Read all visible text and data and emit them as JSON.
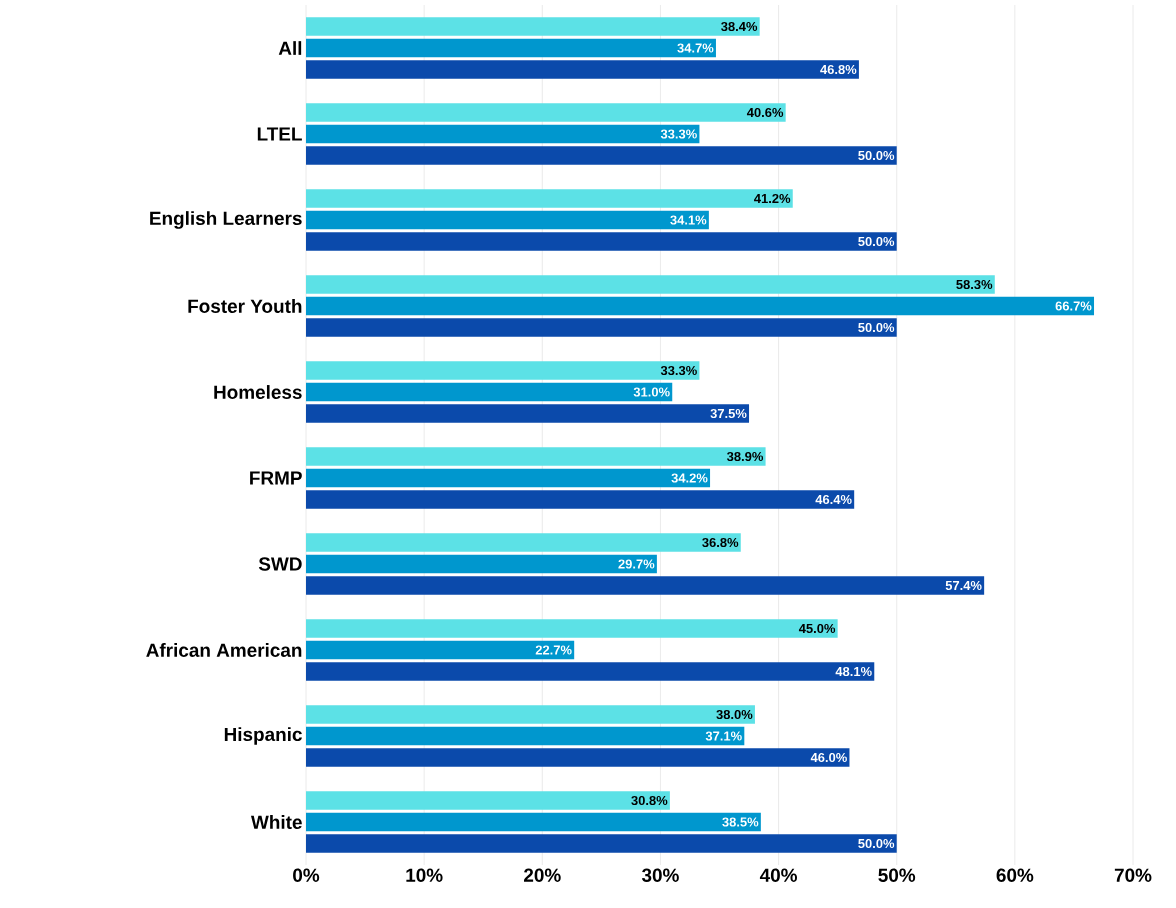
{
  "chart_data": {
    "type": "bar",
    "orientation": "horizontal",
    "categories": [
      "All",
      "LTEL",
      "English Learners",
      "Foster Youth",
      "Homeless",
      "FRMP",
      "SWD",
      "African American",
      "Hispanic",
      "White"
    ],
    "series": [
      {
        "color": "#5ce1e6",
        "values": [
          38.4,
          40.6,
          41.2,
          58.3,
          33.3,
          38.9,
          36.8,
          45.0,
          38.0,
          30.8
        ],
        "value_labels": [
          "38.4%",
          "40.6%",
          "41.2%",
          "58.3%",
          "33.3%",
          "38.9%",
          "36.8%",
          "45.0%",
          "38.0%",
          "30.8%"
        ]
      },
      {
        "color": "#0097ce",
        "values": [
          34.7,
          33.3,
          34.1,
          66.7,
          31.0,
          34.2,
          29.7,
          22.7,
          37.1,
          38.5
        ],
        "value_labels": [
          "34.7%",
          "33.3%",
          "34.1%",
          "66.7%",
          "31.0%",
          "34.2%",
          "29.7%",
          "22.7%",
          "37.1%",
          "38.5%"
        ]
      },
      {
        "color": "#0b4aab",
        "values": [
          46.8,
          50.0,
          50.0,
          50.0,
          37.5,
          46.4,
          57.4,
          48.1,
          46.0,
          50.0
        ],
        "value_labels": [
          "46.8%",
          "50.0%",
          "50.0%",
          "50.0%",
          "37.5%",
          "46.4%",
          "57.4%",
          "48.1%",
          "46.0%",
          "50.0%"
        ]
      }
    ],
    "xlim": [
      0,
      70
    ],
    "xticks": [
      {
        "value": 0,
        "label": "0%"
      },
      {
        "value": 10,
        "label": "10%"
      },
      {
        "value": 20,
        "label": "20%"
      },
      {
        "value": 30,
        "label": "30%"
      },
      {
        "value": 40,
        "label": "40%"
      },
      {
        "value": 50,
        "label": "50%"
      },
      {
        "value": 60,
        "label": "60%"
      },
      {
        "value": 70,
        "label": "70%"
      }
    ],
    "grid": "x"
  }
}
